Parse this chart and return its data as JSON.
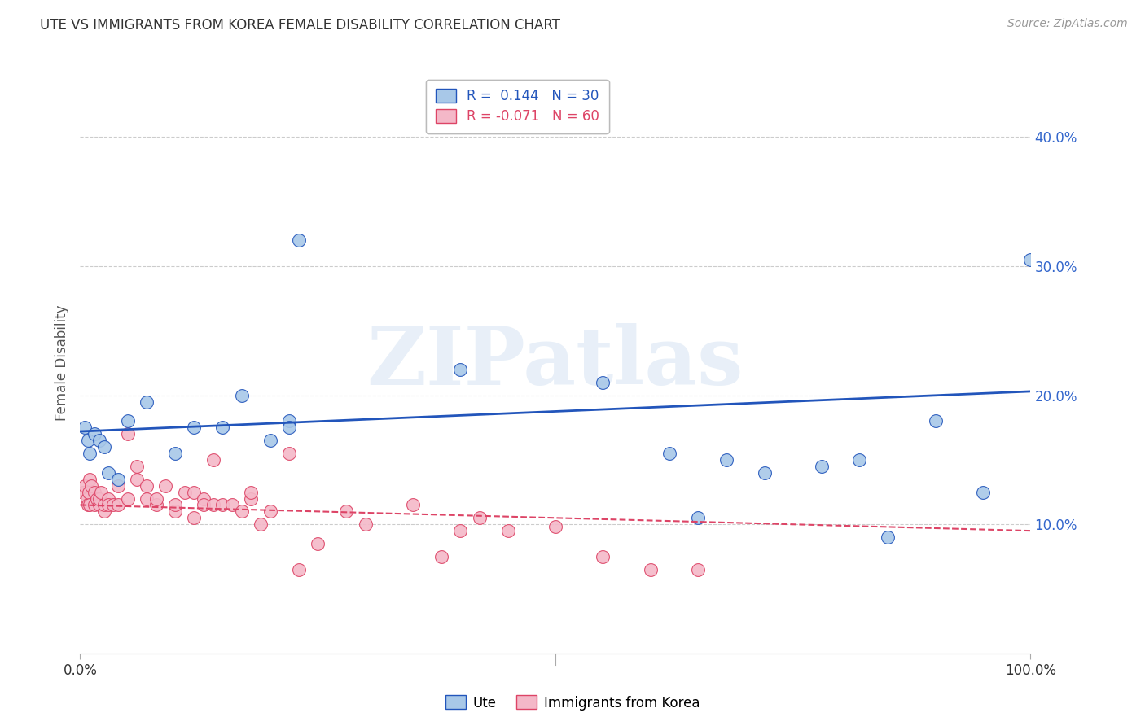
{
  "title": "UTE VS IMMIGRANTS FROM KOREA FEMALE DISABILITY CORRELATION CHART",
  "source": "Source: ZipAtlas.com",
  "ylabel": "Female Disability",
  "watermark": "ZIPatlas",
  "ute_color": "#a8c8e8",
  "korea_color": "#f4b8c8",
  "ute_line_color": "#2255bb",
  "korea_line_color": "#dd4466",
  "legend_r1": "R =  0.144   N = 30",
  "legend_r2": "R = -0.071   N = 60",
  "legend_label_ute": "Ute",
  "legend_label_korea": "Immigrants from Korea",
  "xlim": [
    0.0,
    1.0
  ],
  "ylim": [
    0.0,
    0.45
  ],
  "yticks": [
    0.1,
    0.2,
    0.3,
    0.4
  ],
  "ute_x": [
    0.005,
    0.008,
    0.01,
    0.015,
    0.02,
    0.025,
    0.03,
    0.04,
    0.05,
    0.07,
    0.1,
    0.12,
    0.15,
    0.17,
    0.2,
    0.22,
    0.22,
    0.23,
    0.4,
    0.55,
    0.62,
    0.65,
    0.68,
    0.72,
    0.78,
    0.82,
    0.85,
    0.9,
    0.95,
    1.0
  ],
  "ute_y": [
    0.175,
    0.165,
    0.155,
    0.17,
    0.165,
    0.16,
    0.14,
    0.135,
    0.18,
    0.195,
    0.155,
    0.175,
    0.175,
    0.2,
    0.165,
    0.18,
    0.175,
    0.32,
    0.22,
    0.21,
    0.155,
    0.105,
    0.15,
    0.14,
    0.145,
    0.15,
    0.09,
    0.18,
    0.125,
    0.305
  ],
  "korea_x": [
    0.003,
    0.005,
    0.007,
    0.008,
    0.009,
    0.01,
    0.01,
    0.012,
    0.015,
    0.015,
    0.018,
    0.02,
    0.02,
    0.022,
    0.025,
    0.025,
    0.03,
    0.03,
    0.035,
    0.04,
    0.04,
    0.05,
    0.05,
    0.06,
    0.06,
    0.07,
    0.07,
    0.08,
    0.08,
    0.09,
    0.1,
    0.1,
    0.11,
    0.12,
    0.12,
    0.13,
    0.13,
    0.14,
    0.14,
    0.15,
    0.16,
    0.17,
    0.18,
    0.18,
    0.19,
    0.2,
    0.22,
    0.23,
    0.25,
    0.28,
    0.3,
    0.35,
    0.38,
    0.4,
    0.42,
    0.45,
    0.5,
    0.55,
    0.6,
    0.65
  ],
  "korea_y": [
    0.125,
    0.13,
    0.12,
    0.115,
    0.125,
    0.135,
    0.115,
    0.13,
    0.125,
    0.115,
    0.12,
    0.115,
    0.12,
    0.125,
    0.11,
    0.115,
    0.12,
    0.115,
    0.115,
    0.115,
    0.13,
    0.17,
    0.12,
    0.135,
    0.145,
    0.13,
    0.12,
    0.115,
    0.12,
    0.13,
    0.11,
    0.115,
    0.125,
    0.125,
    0.105,
    0.12,
    0.115,
    0.115,
    0.15,
    0.115,
    0.115,
    0.11,
    0.12,
    0.125,
    0.1,
    0.11,
    0.155,
    0.065,
    0.085,
    0.11,
    0.1,
    0.115,
    0.075,
    0.095,
    0.105,
    0.095,
    0.098,
    0.075,
    0.065,
    0.065
  ]
}
